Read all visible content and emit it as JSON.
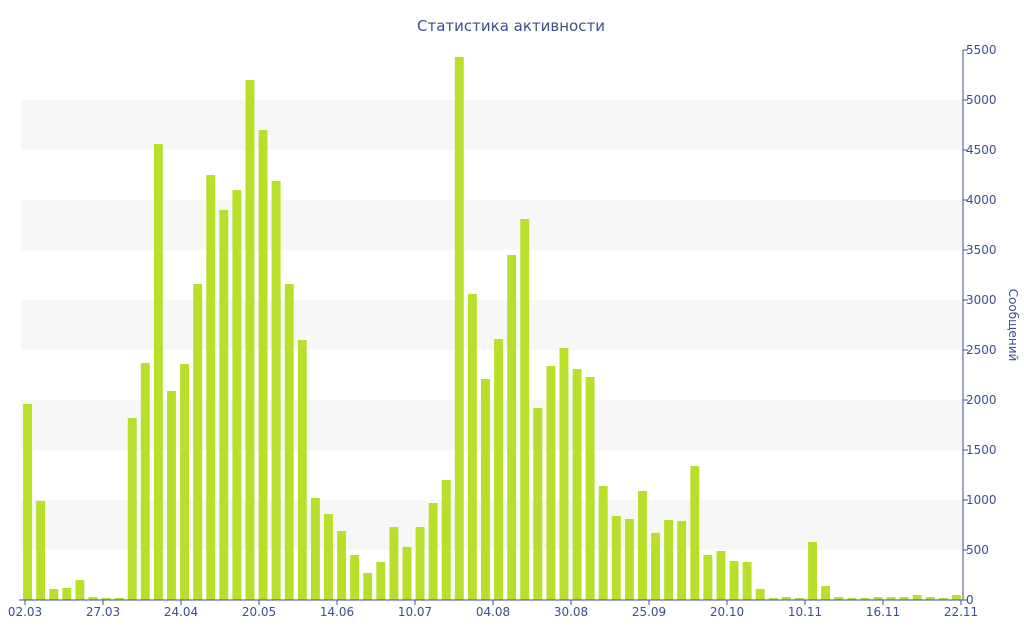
{
  "chart_data": {
    "type": "bar",
    "title": "Статистика активности",
    "xlabel": "",
    "ylabel": "Сообщений",
    "y_axis_side": "right",
    "ylim": [
      0,
      5500
    ],
    "yticks": [
      0,
      500,
      1000,
      1500,
      2000,
      2500,
      3000,
      3500,
      4000,
      4500,
      5000,
      5500
    ],
    "grid": "alternating horizontal bands",
    "bar_color": "#b8e02a",
    "axis_color": "#3d4f8f",
    "band_color": "#f7f7f7",
    "xtick_labels": [
      "02.03",
      "27.03",
      "24.04",
      "20.05",
      "14.06",
      "10.07",
      "04.08",
      "30.08",
      "25.09",
      "20.10",
      "10.11",
      "16.11",
      "22.11"
    ],
    "series": [
      {
        "values": [
          1960,
          990,
          110,
          120,
          200,
          30,
          20,
          20,
          1820,
          2370,
          4560,
          2090,
          2360,
          3160,
          4250,
          3900,
          4100,
          5200,
          4700,
          4190,
          3160,
          2600,
          1020,
          860,
          690,
          450,
          270,
          380,
          730,
          530,
          730,
          970,
          1200,
          5430,
          3060,
          2210,
          2610,
          3450,
          3810,
          1920,
          2340,
          2520,
          2310,
          2230,
          1140,
          840,
          810,
          1090,
          670,
          800,
          790,
          1340,
          450,
          490,
          390,
          380,
          110,
          20,
          30,
          20,
          580,
          140,
          30,
          20,
          20,
          30,
          30,
          30,
          50,
          30,
          20,
          50
        ]
      }
    ]
  }
}
